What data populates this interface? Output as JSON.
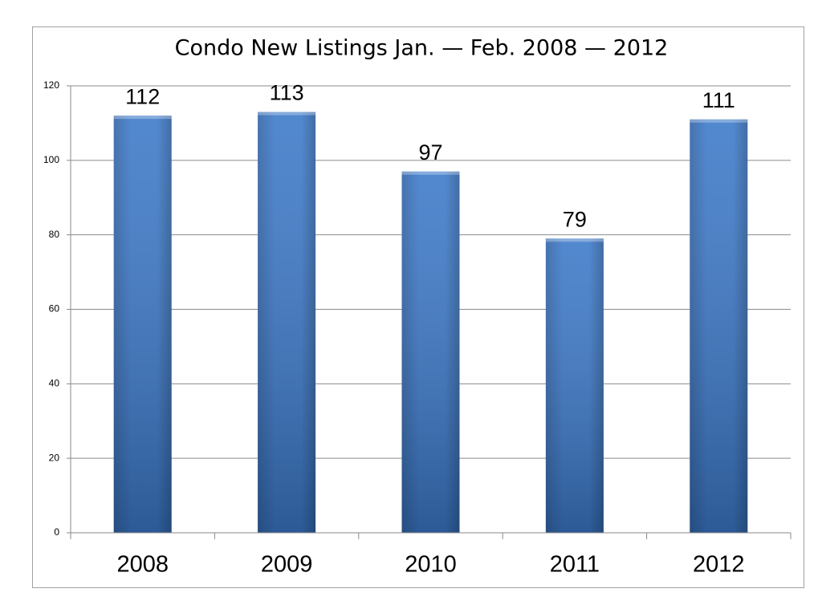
{
  "chart_data": {
    "type": "bar",
    "title": "Condo New Listings Jan. — Feb. 2008 — 2012",
    "categories": [
      "2008",
      "2009",
      "2010",
      "2011",
      "2012"
    ],
    "values": [
      112,
      113,
      97,
      79,
      111
    ],
    "color": "#3b78c8",
    "ylim": [
      0,
      120
    ],
    "yticks": [
      0,
      20,
      40,
      60,
      80,
      100,
      120
    ],
    "grid": true
  }
}
